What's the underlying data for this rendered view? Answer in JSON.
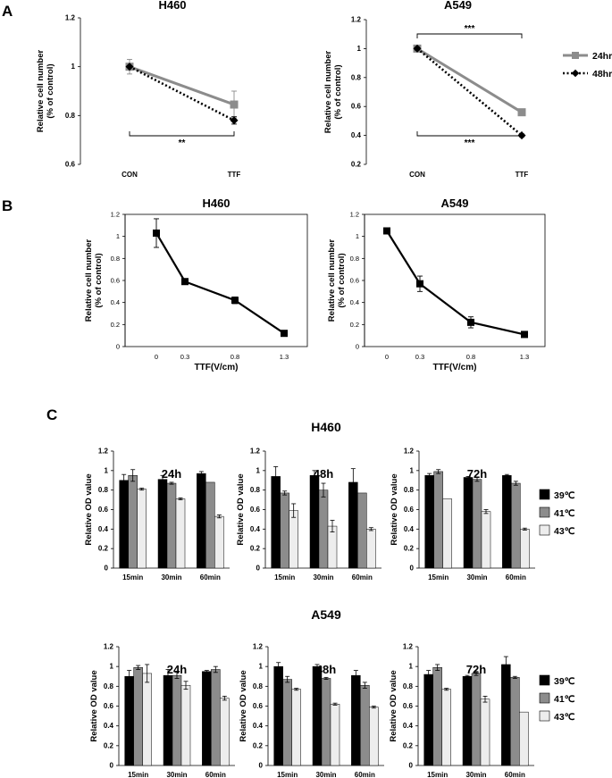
{
  "figure": {
    "panel_labels": [
      "A",
      "B",
      "C"
    ],
    "group_titles": [
      "H460",
      "A549"
    ]
  },
  "chart_data": [
    {
      "id": "A-H460",
      "type": "line",
      "title": "H460",
      "ylabel": [
        "Relative cell number",
        "(% of control)"
      ],
      "xlabel": "",
      "categories": [
        "CON",
        "TTF"
      ],
      "ylim": [
        0.6,
        1.2
      ],
      "yticks": [
        "0.6",
        "0.8",
        "1",
        "1.2"
      ],
      "series": [
        {
          "name": "24hr",
          "color": "#8c8c8c",
          "values": [
            1.0,
            0.845
          ],
          "errors": [
            0.03,
            0.055
          ]
        },
        {
          "name": "48hr",
          "color": "#000000",
          "values": [
            1.0,
            0.78
          ],
          "errors": [
            0.0,
            0.015
          ]
        }
      ],
      "annotations": [
        {
          "text": "**",
          "position": "below"
        }
      ]
    },
    {
      "id": "A-A549",
      "type": "line",
      "title": "A549",
      "ylabel": [
        "Relative cell number",
        "(% of control)"
      ],
      "xlabel": "",
      "categories": [
        "CON",
        "TTF"
      ],
      "ylim": [
        0.2,
        1.2
      ],
      "yticks": [
        "0.2",
        "0.4",
        "0.6",
        "0.8",
        "1",
        "1.2"
      ],
      "series": [
        {
          "name": "24hr",
          "color": "#8c8c8c",
          "values": [
            1.0,
            0.56
          ],
          "errors": [
            0.01,
            0.015
          ]
        },
        {
          "name": "48hr",
          "color": "#000000",
          "values": [
            1.0,
            0.4
          ],
          "errors": [
            0.01,
            0.01
          ]
        }
      ],
      "annotations": [
        {
          "text": "***",
          "position": "above"
        },
        {
          "text": "***",
          "position": "below"
        }
      ],
      "legend": {
        "entries": [
          "24hr",
          "48hr"
        ],
        "placement": "right"
      }
    },
    {
      "id": "B-H460",
      "type": "line",
      "title": "H460",
      "ylabel": [
        "Relative cell number",
        "(% of control)"
      ],
      "xlabel": "TTF(V/cm)",
      "categories": [
        "0",
        "0.3",
        "0.8",
        "1.3"
      ],
      "ylim": [
        0,
        1.2
      ],
      "yticks": [
        "0",
        "0.2",
        "0.4",
        "0.6",
        "0.8",
        "1",
        "1.2"
      ],
      "series": [
        {
          "name": "H460",
          "color": "#000000",
          "values": [
            1.03,
            0.59,
            0.42,
            0.12
          ],
          "errors": [
            0.13,
            0.0,
            0.03,
            0.0
          ]
        }
      ]
    },
    {
      "id": "B-A549",
      "type": "line",
      "title": "A549",
      "ylabel": [
        "Relative cell number",
        "(% of control)"
      ],
      "xlabel": "TTF(V/cm)",
      "categories": [
        "0",
        "0.3",
        "0.8",
        "1.3"
      ],
      "ylim": [
        0,
        1.2
      ],
      "yticks": [
        "0",
        "0.2",
        "0.4",
        "0.6",
        "0.8",
        "1",
        "1.2"
      ],
      "series": [
        {
          "name": "A549",
          "color": "#000000",
          "values": [
            1.05,
            0.57,
            0.22,
            0.11
          ],
          "errors": [
            0.02,
            0.07,
            0.05,
            0.0
          ]
        }
      ]
    },
    {
      "id": "C-H460-24h",
      "type": "bar",
      "group": "H460",
      "title": "24h",
      "ylabel": "Relative OD value",
      "categories": [
        "15min",
        "30min",
        "60min"
      ],
      "ylim": [
        0,
        1.2
      ],
      "yticks": [
        "0",
        "0.2",
        "0.4",
        "0.6",
        "0.8",
        "1",
        "1.2"
      ],
      "series": [
        {
          "name": "39℃",
          "color": "#000000",
          "values": [
            0.9,
            0.91,
            0.97
          ],
          "errors": [
            0.06,
            0.04,
            0.02
          ]
        },
        {
          "name": "41℃",
          "color": "#8c8c8c",
          "values": [
            0.95,
            0.87,
            0.88
          ],
          "errors": [
            0.06,
            0.01,
            0.0
          ]
        },
        {
          "name": "43℃",
          "color": "#ededed",
          "values": [
            0.81,
            0.71,
            0.53
          ],
          "errors": [
            0.01,
            0.01,
            0.015
          ]
        }
      ]
    },
    {
      "id": "C-H460-48h",
      "type": "bar",
      "group": "H460",
      "title": "48h",
      "ylabel": "Relative OD value",
      "categories": [
        "15min",
        "30min",
        "60min"
      ],
      "ylim": [
        0,
        1.2
      ],
      "yticks": [
        "0",
        "0.2",
        "0.4",
        "0.6",
        "0.8",
        "1",
        "1.2"
      ],
      "series": [
        {
          "name": "39℃",
          "color": "#000000",
          "values": [
            0.94,
            0.95,
            0.88
          ],
          "errors": [
            0.1,
            0.05,
            0.14
          ]
        },
        {
          "name": "41℃",
          "color": "#8c8c8c",
          "values": [
            0.77,
            0.8,
            0.77
          ],
          "errors": [
            0.02,
            0.07,
            0.0
          ]
        },
        {
          "name": "43℃",
          "color": "#ededed",
          "values": [
            0.59,
            0.43,
            0.4
          ],
          "errors": [
            0.07,
            0.06,
            0.015
          ]
        }
      ]
    },
    {
      "id": "C-H460-72h",
      "type": "bar",
      "group": "H460",
      "title": "72h",
      "ylabel": "Relative OD value",
      "categories": [
        "15min",
        "30min",
        "60min"
      ],
      "ylim": [
        0,
        1.2
      ],
      "yticks": [
        "0",
        "0.2",
        "0.4",
        "0.6",
        "0.8",
        "1",
        "1.2"
      ],
      "series": [
        {
          "name": "39℃",
          "color": "#000000",
          "values": [
            0.95,
            0.93,
            0.95
          ],
          "errors": [
            0.02,
            0.01,
            0.01
          ]
        },
        {
          "name": "41℃",
          "color": "#8c8c8c",
          "values": [
            0.99,
            0.91,
            0.87
          ],
          "errors": [
            0.02,
            0.02,
            0.02
          ]
        },
        {
          "name": "43℃",
          "color": "#ededed",
          "values": [
            0.71,
            0.58,
            0.4
          ],
          "errors": [
            0.0,
            0.02,
            0.01
          ]
        }
      ],
      "legend": {
        "entries": [
          "39℃",
          "41℃",
          "43℃"
        ],
        "placement": "right"
      }
    },
    {
      "id": "C-A549-24h",
      "type": "bar",
      "group": "A549",
      "title": "24h",
      "ylabel": "Relative OD value",
      "categories": [
        "15min",
        "30min",
        "60min"
      ],
      "ylim": [
        0,
        1.2
      ],
      "yticks": [
        "0",
        "0.2",
        "0.4",
        "0.6",
        "0.8",
        "1",
        "1.2"
      ],
      "series": [
        {
          "name": "39℃",
          "color": "#000000",
          "values": [
            0.9,
            0.91,
            0.95
          ],
          "errors": [
            0.06,
            0.06,
            0.01
          ]
        },
        {
          "name": "41℃",
          "color": "#8c8c8c",
          "values": [
            0.99,
            0.91,
            0.97
          ],
          "errors": [
            0.02,
            0.03,
            0.03
          ]
        },
        {
          "name": "43℃",
          "color": "#ededed",
          "values": [
            0.93,
            0.81,
            0.68
          ],
          "errors": [
            0.09,
            0.04,
            0.02
          ]
        }
      ]
    },
    {
      "id": "C-A549-48h",
      "type": "bar",
      "group": "A549",
      "title": "48h",
      "ylabel": "Relative OD value",
      "categories": [
        "15min",
        "30min",
        "60min"
      ],
      "ylim": [
        0,
        1.2
      ],
      "yticks": [
        "0",
        "0.2",
        "0.4",
        "0.6",
        "0.8",
        "1",
        "1.2"
      ],
      "series": [
        {
          "name": "39℃",
          "color": "#000000",
          "values": [
            1.0,
            1.0,
            0.91
          ],
          "errors": [
            0.04,
            0.02,
            0.05
          ]
        },
        {
          "name": "41℃",
          "color": "#8c8c8c",
          "values": [
            0.87,
            0.88,
            0.81
          ],
          "errors": [
            0.03,
            0.01,
            0.03
          ]
        },
        {
          "name": "43℃",
          "color": "#ededed",
          "values": [
            0.77,
            0.62,
            0.59
          ],
          "errors": [
            0.01,
            0.01,
            0.01
          ]
        }
      ]
    },
    {
      "id": "C-A549-72h",
      "type": "bar",
      "group": "A549",
      "title": "72h",
      "ylabel": "Relative OD value",
      "categories": [
        "15min",
        "30min",
        "60min"
      ],
      "ylim": [
        0,
        1.2
      ],
      "yticks": [
        "0",
        "0.2",
        "0.4",
        "0.6",
        "0.8",
        "1",
        "1.2"
      ],
      "series": [
        {
          "name": "39℃",
          "color": "#000000",
          "values": [
            0.92,
            0.9,
            1.02
          ],
          "errors": [
            0.04,
            0.01,
            0.08
          ]
        },
        {
          "name": "41℃",
          "color": "#8c8c8c",
          "values": [
            0.99,
            0.93,
            0.89
          ],
          "errors": [
            0.03,
            0.02,
            0.01
          ]
        },
        {
          "name": "43℃",
          "color": "#ededed",
          "values": [
            0.77,
            0.67,
            0.54
          ],
          "errors": [
            0.01,
            0.03,
            0.0
          ]
        }
      ],
      "legend": {
        "entries": [
          "39℃",
          "41℃",
          "43℃"
        ],
        "placement": "right"
      }
    }
  ]
}
